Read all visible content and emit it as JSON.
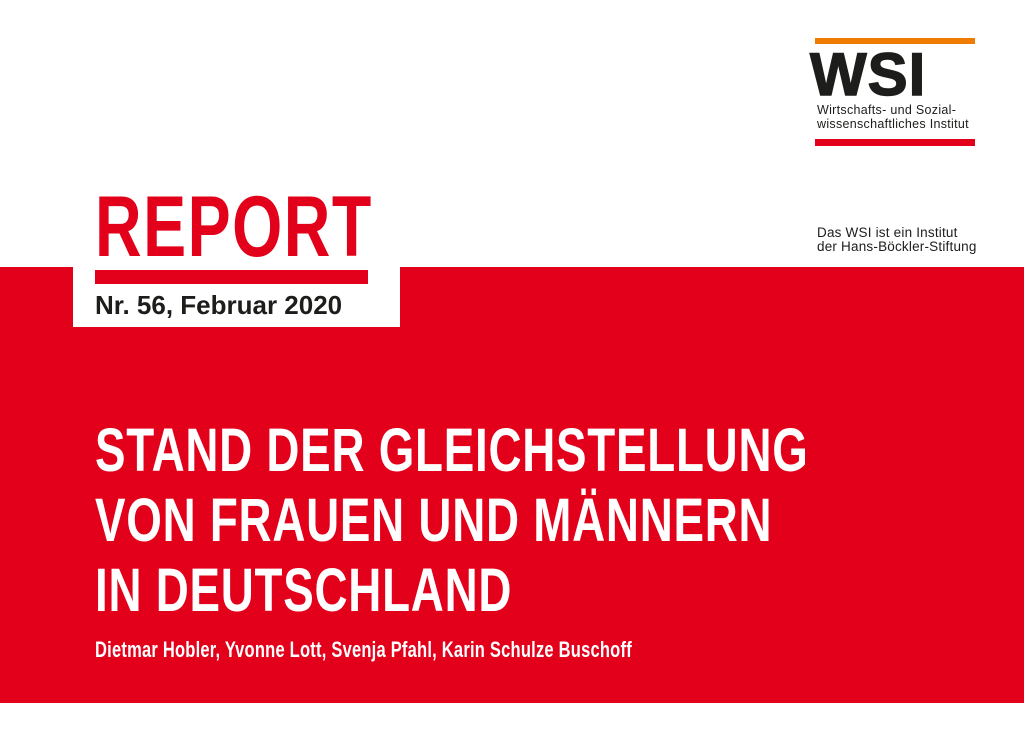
{
  "colors": {
    "brand-red": "#E2001A",
    "brand-orange": "#EF7C00",
    "ink": "#1D1D1B",
    "paper": "#FFFFFF"
  },
  "logo": {
    "acronym": "WSI",
    "subtitle_line1": "Wirtschafts- und Sozial-",
    "subtitle_line2": "wissenschaftliches Institut",
    "note_line1": "Das WSI ist ein Institut",
    "note_line2": "der Hans-Böckler-Stiftung"
  },
  "masthead": {
    "series_title": "REPORT",
    "issue": "Nr. 56, Februar 2020"
  },
  "cover": {
    "title_line1": "STAND DER GLEICHSTELLUNG",
    "title_line2": "VON FRAUEN UND MÄNNERN",
    "title_line3": "IN DEUTSCHLAND",
    "authors": "Dietmar Hobler, Yvonne Lott, Svenja Pfahl, Karin Schulze Buschoff"
  }
}
